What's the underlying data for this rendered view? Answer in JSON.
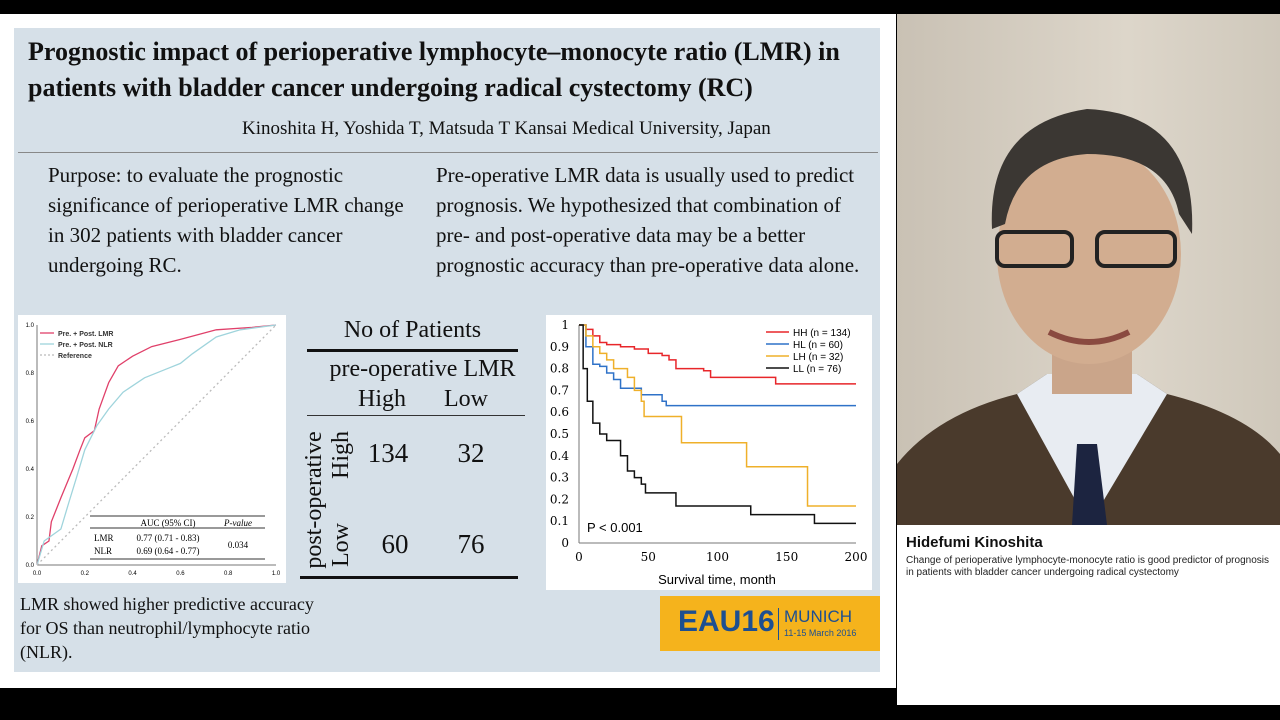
{
  "slide": {
    "title": "Prognostic impact of perioperative lymphocyte–monocyte ratio (LMR) in patients with bladder cancer undergoing radical cystectomy (RC)",
    "authors": "Kinoshita H, Yoshida T, Matsuda T  Kansai Medical University, Japan",
    "purpose": "Purpose: to evaluate the prognostic significance of perioperative LMR change in 302 patients with bladder cancer undergoing RC.",
    "hypothesis": "Pre-operative LMR data is usually used to predict prognosis. We hypothesized that combination of pre- and post-operative data may be a better prognostic accuracy than pre-operative data alone.",
    "conclusion": "LMR showed higher predictive accuracy for OS than neutrophil/lymphocyte ratio (NLR).",
    "table": {
      "title": "No of Patients",
      "col_group": "pre-operative LMR",
      "cols": [
        "High",
        "Low"
      ],
      "row_group": "post-operative",
      "rows": [
        {
          "label": "High",
          "values": [
            "134",
            "32"
          ]
        },
        {
          "label": "Low",
          "values": [
            "60",
            "76"
          ]
        }
      ]
    },
    "logo": {
      "brand": "EAU16",
      "city": "MUNICH",
      "dates": "11-15 March 2016"
    }
  },
  "chart_data": [
    {
      "type": "line",
      "title": "",
      "xlim": [
        0,
        1
      ],
      "ylim": [
        0,
        1
      ],
      "xticks": [
        "0.0",
        "0.2",
        "0.4",
        "0.6",
        "0.8",
        "1.0"
      ],
      "yticks": [
        "0.0",
        "0.2",
        "0.4",
        "0.6",
        "0.8",
        "1.0"
      ],
      "legend_placement": "top-left",
      "series": [
        {
          "name": "Pre. + Post. LMR",
          "color": "#e0406a",
          "points": [
            [
              0,
              0
            ],
            [
              0.02,
              0.08
            ],
            [
              0.05,
              0.1
            ],
            [
              0.06,
              0.18
            ],
            [
              0.1,
              0.28
            ],
            [
              0.15,
              0.4
            ],
            [
              0.18,
              0.48
            ],
            [
              0.2,
              0.53
            ],
            [
              0.24,
              0.56
            ],
            [
              0.26,
              0.65
            ],
            [
              0.3,
              0.76
            ],
            [
              0.34,
              0.83
            ],
            [
              0.4,
              0.87
            ],
            [
              0.48,
              0.91
            ],
            [
              0.6,
              0.94
            ],
            [
              0.75,
              0.98
            ],
            [
              0.9,
              0.99
            ],
            [
              1,
              1
            ]
          ]
        },
        {
          "name": "Pre. + Post. NLR",
          "color": "#9fd4dc",
          "points": [
            [
              0,
              0
            ],
            [
              0.03,
              0.1
            ],
            [
              0.1,
              0.15
            ],
            [
              0.13,
              0.25
            ],
            [
              0.17,
              0.38
            ],
            [
              0.2,
              0.48
            ],
            [
              0.25,
              0.58
            ],
            [
              0.3,
              0.65
            ],
            [
              0.36,
              0.72
            ],
            [
              0.45,
              0.78
            ],
            [
              0.55,
              0.82
            ],
            [
              0.6,
              0.84
            ],
            [
              0.65,
              0.88
            ],
            [
              0.75,
              0.95
            ],
            [
              0.85,
              0.98
            ],
            [
              1,
              1
            ]
          ]
        },
        {
          "name": "Reference",
          "color": "#bbbbbb",
          "points": [
            [
              0,
              0
            ],
            [
              1,
              1
            ]
          ]
        }
      ],
      "auc_table": {
        "headers": [
          "",
          "AUC (95% CI)",
          "P-value"
        ],
        "rows": [
          [
            "LMR",
            "0.77 (0.71 - 0.83)"
          ],
          [
            "NLR",
            "0.69 (0.64 - 0.77)"
          ]
        ],
        "p_value": "0.034"
      }
    },
    {
      "type": "line",
      "title": "",
      "xlabel": "Survival time, month",
      "xlim": [
        0,
        200
      ],
      "ylim": [
        0,
        1
      ],
      "xticks": [
        "0",
        "50",
        "100",
        "150",
        "200"
      ],
      "yticks": [
        "0",
        "0.1",
        "0.2",
        "0.3",
        "0.4",
        "0.5",
        "0.6",
        "0.7",
        "0.8",
        "0.9",
        "1"
      ],
      "legend_placement": "top-right",
      "annotation": "P < 0.001",
      "series": [
        {
          "name": "HH (n = 134)",
          "color": "#e8262a",
          "points": [
            [
              0,
              1
            ],
            [
              5,
              0.98
            ],
            [
              10,
              0.95
            ],
            [
              15,
              0.92
            ],
            [
              20,
              0.91
            ],
            [
              30,
              0.9
            ],
            [
              40,
              0.89
            ],
            [
              50,
              0.87
            ],
            [
              60,
              0.86
            ],
            [
              65,
              0.84
            ],
            [
              70,
              0.8
            ],
            [
              90,
              0.79
            ],
            [
              95,
              0.76
            ],
            [
              140,
              0.76
            ],
            [
              142,
              0.73
            ],
            [
              200,
              0.73
            ]
          ]
        },
        {
          "name": "HL (n = 60)",
          "color": "#2f72c8",
          "points": [
            [
              0,
              1
            ],
            [
              5,
              0.9
            ],
            [
              10,
              0.82
            ],
            [
              15,
              0.81
            ],
            [
              20,
              0.78
            ],
            [
              25,
              0.75
            ],
            [
              30,
              0.71
            ],
            [
              45,
              0.68
            ],
            [
              60,
              0.65
            ],
            [
              63,
              0.63
            ],
            [
              200,
              0.63
            ]
          ]
        },
        {
          "name": "LH (n = 32)",
          "color": "#efb02a",
          "points": [
            [
              0,
              1
            ],
            [
              5,
              0.95
            ],
            [
              10,
              0.9
            ],
            [
              15,
              0.87
            ],
            [
              20,
              0.84
            ],
            [
              25,
              0.8
            ],
            [
              35,
              0.76
            ],
            [
              40,
              0.7
            ],
            [
              45,
              0.65
            ],
            [
              47,
              0.58
            ],
            [
              73,
              0.58
            ],
            [
              74,
              0.46
            ],
            [
              120,
              0.46
            ],
            [
              121,
              0.35
            ],
            [
              164,
              0.35
            ],
            [
              165,
              0.17
            ],
            [
              200,
              0.17
            ]
          ]
        },
        {
          "name": "LL (n = 76)",
          "color": "#111111",
          "points": [
            [
              0,
              1
            ],
            [
              3,
              0.8
            ],
            [
              6,
              0.65
            ],
            [
              10,
              0.55
            ],
            [
              15,
              0.5
            ],
            [
              20,
              0.47
            ],
            [
              26,
              0.47
            ],
            [
              30,
              0.4
            ],
            [
              35,
              0.33
            ],
            [
              40,
              0.3
            ],
            [
              45,
              0.27
            ],
            [
              48,
              0.23
            ],
            [
              65,
              0.23
            ],
            [
              70,
              0.17
            ],
            [
              123,
              0.17
            ],
            [
              124,
              0.13
            ],
            [
              169,
              0.13
            ],
            [
              170,
              0.09
            ],
            [
              200,
              0.09
            ]
          ]
        }
      ]
    }
  ],
  "speaker": {
    "name": "Hidefumi Kinoshita",
    "caption": "Change of perioperative lymphocyte-monocyte ratio is good predictor of prognosis in patients with bladder cancer undergoing radical cystectomy"
  }
}
